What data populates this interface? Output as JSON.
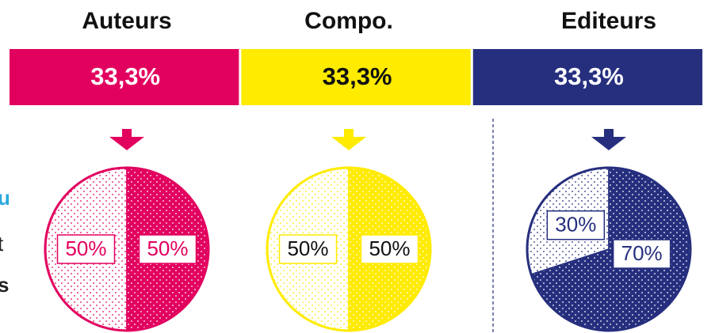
{
  "chart_data": [
    {
      "type": "pie",
      "title": "Auteurs",
      "share": 33.3,
      "share_label": "33,3%",
      "color": "#e2005f",
      "text_color": "#ffffff",
      "label_color": "#e2005f",
      "categories": [
        null,
        null
      ],
      "values": [
        50,
        50
      ],
      "value_labels": [
        "50%",
        "50%"
      ]
    },
    {
      "type": "pie",
      "title": "Compo.",
      "share": 33.3,
      "share_label": "33,3%",
      "color": "#ffeb00",
      "text_color": "#111111",
      "label_color": "#111111",
      "categories": [
        null,
        null
      ],
      "values": [
        50,
        50
      ],
      "value_labels": [
        "50%",
        "50%"
      ]
    },
    {
      "type": "pie",
      "title": "Editeurs",
      "share": 33.3,
      "share_label": "33,3%",
      "color": "#262f7e",
      "text_color": "#ffffff",
      "label_color": "#262f7e",
      "categories": [
        null,
        null
      ],
      "values": [
        30,
        70
      ],
      "value_labels": [
        "30%",
        "70%"
      ]
    }
  ],
  "edge_fragments": [
    "u",
    "t",
    "s"
  ]
}
